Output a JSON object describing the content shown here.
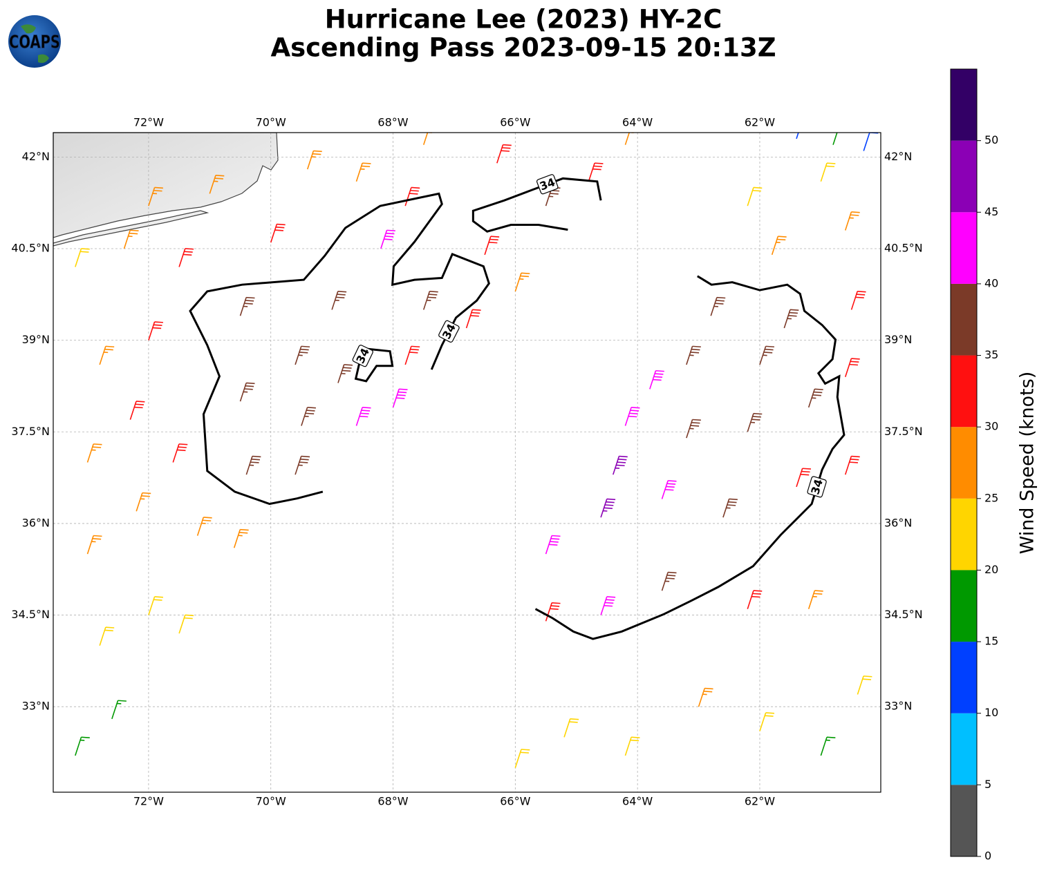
{
  "title": [
    "Hurricane Lee (2023) HY-2C",
    "Ascending Pass 2023-09-15 20:13Z"
  ],
  "logo": "COAPS",
  "xlim": [
    -73.56,
    -60.02
  ],
  "ylim": [
    31.6,
    42.4
  ],
  "xticks": [
    {
      "value": -72,
      "label": "72°W"
    },
    {
      "value": -70,
      "label": "70°W"
    },
    {
      "value": -68,
      "label": "68°W"
    },
    {
      "value": -66,
      "label": "66°W"
    },
    {
      "value": -64,
      "label": "64°W"
    },
    {
      "value": -62,
      "label": "62°W"
    }
  ],
  "yticks": [
    {
      "value": 33,
      "label": "33°N"
    },
    {
      "value": 34.5,
      "label": "34.5°N"
    },
    {
      "value": 36,
      "label": "36°N"
    },
    {
      "value": 37.5,
      "label": "37.5°N"
    },
    {
      "value": 39,
      "label": "39°N"
    },
    {
      "value": 40.5,
      "label": "40.5°N"
    },
    {
      "value": 42,
      "label": "42°N"
    }
  ],
  "grid": true,
  "colorbar": {
    "label": "Wind Speed (knots)",
    "lim": [
      0,
      55
    ],
    "bounds": [
      0,
      5,
      10,
      15,
      20,
      25,
      30,
      35,
      40,
      45,
      50,
      55
    ],
    "colors": [
      "#555555",
      "#00bfff",
      "#0040ff",
      "#009900",
      "#ffd500",
      "#ff8c00",
      "#ff1010",
      "#7b3a28",
      "#ff00ff",
      "#8b00b5",
      "#330066"
    ],
    "ticks": [
      0,
      5,
      10,
      15,
      20,
      25,
      30,
      35,
      40,
      45,
      50
    ]
  },
  "contours": [
    {
      "level": 34,
      "lon": [
        -69.15,
        -69.57,
        -70.02,
        -70.59,
        -71.04,
        -71.1,
        -70.84,
        -71.04,
        -71.32,
        -71.04,
        -70.47,
        -69.46,
        -69.12,
        -68.78,
        -68.21,
        -67.25,
        -67.2,
        -67.65,
        -67.99,
        -68.01,
        -67.65,
        -67.2,
        -67.03,
        -66.52,
        -66.43,
        -66.63,
        -66.97,
        -67.2,
        -67.37
      ],
      "lat": [
        36.52,
        36.41,
        36.32,
        36.52,
        36.86,
        37.79,
        38.41,
        38.92,
        39.48,
        39.8,
        39.91,
        39.99,
        40.38,
        40.84,
        41.2,
        41.4,
        41.23,
        40.61,
        40.21,
        39.91,
        39.99,
        40.02,
        40.41,
        40.21,
        39.93,
        39.65,
        39.37,
        38.92,
        38.52
      ]
    },
    {
      "level": 34,
      "lon": [
        -68.55,
        -68.61,
        -68.44,
        -68.27,
        -68.01,
        -68.05,
        -68.44,
        -68.55
      ],
      "lat": [
        38.63,
        38.37,
        38.33,
        38.58,
        38.58,
        38.82,
        38.86,
        38.63
      ]
    },
    {
      "level": 34,
      "lon": [
        -64.6,
        -64.66,
        -65.22,
        -65.73,
        -66.18,
        -66.69,
        -66.69,
        -66.46,
        -66.07,
        -65.62,
        -65.14
      ],
      "lat": [
        41.29,
        41.6,
        41.65,
        41.46,
        41.29,
        41.12,
        40.95,
        40.78,
        40.89,
        40.89,
        40.81
      ]
    },
    {
      "level": 34,
      "lon": [
        -63.02,
        -62.79,
        -62.45,
        -62.0,
        -61.55,
        -61.34,
        -61.27,
        -60.98,
        -60.76,
        -60.81,
        -61.04,
        -60.93,
        -60.7,
        -60.73,
        -60.62,
        -60.81,
        -60.98,
        -61.15,
        -61.44,
        -61.66,
        -62.11,
        -62.68,
        -63.13,
        -63.58,
        -64.26,
        -64.73,
        -65.05,
        -65.39,
        -65.67
      ],
      "lat": [
        40.05,
        39.91,
        39.95,
        39.82,
        39.91,
        39.76,
        39.48,
        39.25,
        39.01,
        38.69,
        38.46,
        38.29,
        38.41,
        38.07,
        37.45,
        37.22,
        36.88,
        36.32,
        36.03,
        35.81,
        35.3,
        34.96,
        34.73,
        34.51,
        34.23,
        34.11,
        34.23,
        34.45,
        34.6
      ]
    }
  ],
  "wind": [
    {
      "lon": -73.2,
      "lat": 32.2,
      "speed": 18
    },
    {
      "lon": -72.6,
      "lat": 32.8,
      "speed": 18
    },
    {
      "lon": -72.8,
      "lat": 34,
      "speed": 23
    },
    {
      "lon": -72,
      "lat": 34.5,
      "speed": 24
    },
    {
      "lon": -71.5,
      "lat": 34.2,
      "speed": 24
    },
    {
      "lon": -73,
      "lat": 35.5,
      "speed": 26
    },
    {
      "lon": -72.2,
      "lat": 36.2,
      "speed": 28
    },
    {
      "lon": -71.2,
      "lat": 35.8,
      "speed": 27
    },
    {
      "lon": -70.6,
      "lat": 35.6,
      "speed": 28
    },
    {
      "lon": -73,
      "lat": 37,
      "speed": 27
    },
    {
      "lon": -72.3,
      "lat": 37.7,
      "speed": 30
    },
    {
      "lon": -71.6,
      "lat": 37,
      "speed": 32
    },
    {
      "lon": -70.4,
      "lat": 36.8,
      "speed": 37
    },
    {
      "lon": -69.6,
      "lat": 36.8,
      "speed": 38
    },
    {
      "lon": -72.8,
      "lat": 38.6,
      "speed": 27
    },
    {
      "lon": -72,
      "lat": 39,
      "speed": 32
    },
    {
      "lon": -70.5,
      "lat": 38,
      "speed": 38
    },
    {
      "lon": -69.5,
      "lat": 37.6,
      "speed": 38
    },
    {
      "lon": -68.6,
      "lat": 37.6,
      "speed": 42
    },
    {
      "lon": -68,
      "lat": 37.9,
      "speed": 42
    },
    {
      "lon": -73.2,
      "lat": 40.2,
      "speed": 22
    },
    {
      "lon": -72.4,
      "lat": 40.5,
      "speed": 28
    },
    {
      "lon": -71.5,
      "lat": 40.2,
      "speed": 32
    },
    {
      "lon": -70.5,
      "lat": 39.4,
      "speed": 37
    },
    {
      "lon": -69.6,
      "lat": 38.6,
      "speed": 38
    },
    {
      "lon": -68.9,
      "lat": 38.3,
      "speed": 37
    },
    {
      "lon": -67.8,
      "lat": 38.6,
      "speed": 33
    },
    {
      "lon": -72,
      "lat": 41.2,
      "speed": 27
    },
    {
      "lon": -71,
      "lat": 41.4,
      "speed": 28
    },
    {
      "lon": -70,
      "lat": 40.6,
      "speed": 32
    },
    {
      "lon": -69,
      "lat": 39.5,
      "speed": 38
    },
    {
      "lon": -68.2,
      "lat": 40.5,
      "speed": 42
    },
    {
      "lon": -67.5,
      "lat": 39.5,
      "speed": 38
    },
    {
      "lon": -66.8,
      "lat": 39.2,
      "speed": 31
    },
    {
      "lon": -69.4,
      "lat": 41.8,
      "speed": 27
    },
    {
      "lon": -68.6,
      "lat": 41.6,
      "speed": 28
    },
    {
      "lon": -67.8,
      "lat": 41.2,
      "speed": 33
    },
    {
      "lon": -66.5,
      "lat": 40.4,
      "speed": 33
    },
    {
      "lon": -66,
      "lat": 39.8,
      "speed": 27
    },
    {
      "lon": -67.5,
      "lat": 42.2,
      "speed": 28
    },
    {
      "lon": -66.3,
      "lat": 41.9,
      "speed": 31
    },
    {
      "lon": -65.5,
      "lat": 41.2,
      "speed": 37
    },
    {
      "lon": -64.8,
      "lat": 41.6,
      "speed": 34
    },
    {
      "lon": -64.2,
      "lat": 42.2,
      "speed": 29
    },
    {
      "lon": -66,
      "lat": 32,
      "speed": 22
    },
    {
      "lon": -65.2,
      "lat": 32.5,
      "speed": 23
    },
    {
      "lon": -64.2,
      "lat": 32.2,
      "speed": 24
    },
    {
      "lon": -63,
      "lat": 33,
      "speed": 25
    },
    {
      "lon": -62,
      "lat": 32.6,
      "speed": 24
    },
    {
      "lon": -61,
      "lat": 32.2,
      "speed": 17
    },
    {
      "lon": -60.4,
      "lat": 33.2,
      "speed": 24
    },
    {
      "lon": -65.5,
      "lat": 34.4,
      "speed": 30
    },
    {
      "lon": -64.6,
      "lat": 34.5,
      "speed": 43
    },
    {
      "lon": -63.6,
      "lat": 34.9,
      "speed": 38
    },
    {
      "lon": -62.2,
      "lat": 34.6,
      "speed": 30
    },
    {
      "lon": -61.2,
      "lat": 34.6,
      "speed": 28
    },
    {
      "lon": -65.5,
      "lat": 35.5,
      "speed": 43
    },
    {
      "lon": -64.6,
      "lat": 36.1,
      "speed": 47
    },
    {
      "lon": -64.4,
      "lat": 36.8,
      "speed": 49
    },
    {
      "lon": -63.6,
      "lat": 36.4,
      "speed": 43
    },
    {
      "lon": -62.6,
      "lat": 36.1,
      "speed": 38
    },
    {
      "lon": -61.4,
      "lat": 36.6,
      "speed": 33
    },
    {
      "lon": -60.6,
      "lat": 36.8,
      "speed": 32
    },
    {
      "lon": -64.2,
      "lat": 37.6,
      "speed": 43
    },
    {
      "lon": -63.2,
      "lat": 37.4,
      "speed": 38
    },
    {
      "lon": -62.2,
      "lat": 37.5,
      "speed": 37
    },
    {
      "lon": -61.2,
      "lat": 37.9,
      "speed": 37
    },
    {
      "lon": -60.6,
      "lat": 38.4,
      "speed": 32
    },
    {
      "lon": -63.2,
      "lat": 38.6,
      "speed": 37
    },
    {
      "lon": -62,
      "lat": 38.6,
      "speed": 38
    },
    {
      "lon": -63.8,
      "lat": 38.2,
      "speed": 43
    },
    {
      "lon": -62.8,
      "lat": 39.4,
      "speed": 37
    },
    {
      "lon": -61.6,
      "lat": 39.2,
      "speed": 37
    },
    {
      "lon": -60.5,
      "lat": 39.5,
      "speed": 30
    },
    {
      "lon": -61.8,
      "lat": 40.4,
      "speed": 27
    },
    {
      "lon": -60.6,
      "lat": 40.8,
      "speed": 26
    },
    {
      "lon": -62.2,
      "lat": 41.2,
      "speed": 24
    },
    {
      "lon": -61,
      "lat": 41.6,
      "speed": 22
    },
    {
      "lon": -60.8,
      "lat": 42.2,
      "speed": 18
    },
    {
      "lon": -61.4,
      "lat": 42.3,
      "speed": 12
    },
    {
      "lon": -60.3,
      "lat": 42.1,
      "speed": 13
    }
  ]
}
